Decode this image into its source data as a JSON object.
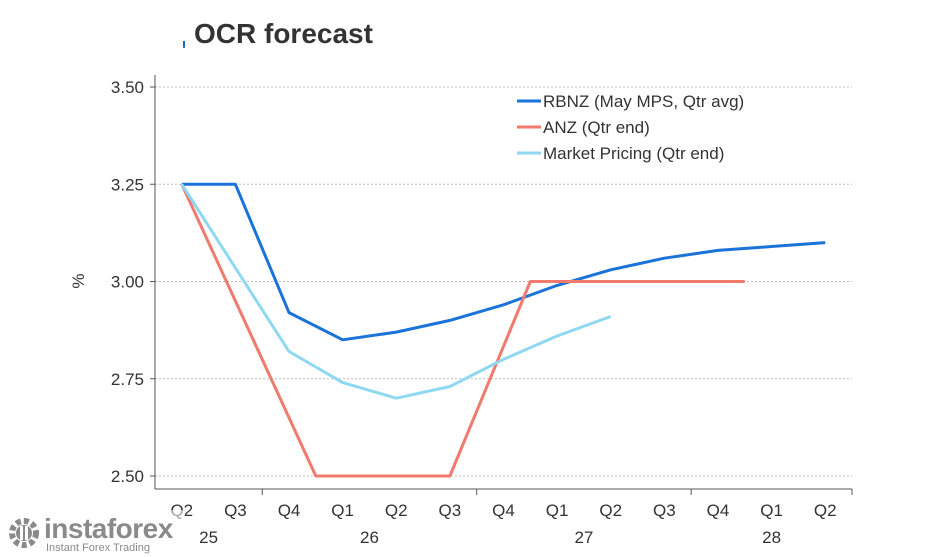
{
  "chart_data": {
    "type": "line",
    "title": "OCR forecast",
    "ylabel": "%",
    "ylim": [
      2.45,
      3.5
    ],
    "yticks": [
      "3.50",
      "3.25",
      "3.00",
      "2.75",
      "2.50"
    ],
    "ytick_values": [
      3.5,
      3.25,
      3.0,
      2.75,
      2.5
    ],
    "quarters": [
      "Q2",
      "Q3",
      "Q4",
      "Q1",
      "Q2",
      "Q3",
      "Q4",
      "Q1",
      "Q2",
      "Q3",
      "Q4",
      "Q1",
      "Q2"
    ],
    "years": [
      {
        "label": "25",
        "from": 0,
        "to": 1
      },
      {
        "label": "26",
        "from": 2,
        "to": 5
      },
      {
        "label": "27",
        "from": 6,
        "to": 9
      },
      {
        "label": "28",
        "from": 10,
        "to": 12
      }
    ],
    "grid": true,
    "legend": "top-right",
    "series": [
      {
        "name": "RBNZ (May MPS, Qtr avg)",
        "color": "#1a73d9",
        "x": [
          0,
          1,
          2,
          3,
          4,
          5,
          6,
          7,
          8,
          9,
          10,
          11,
          12
        ],
        "values": [
          3.25,
          3.25,
          2.92,
          2.85,
          2.87,
          2.9,
          2.94,
          2.99,
          3.03,
          3.06,
          3.08,
          3.09,
          3.1
        ]
      },
      {
        "name": "ANZ (Qtr end)",
        "color": "#f07a6e",
        "x": [
          0,
          2.5,
          5,
          6.5,
          10.5
        ],
        "values": [
          3.25,
          2.5,
          2.5,
          3.0,
          3.0
        ]
      },
      {
        "name": "Market Pricing (Qtr end)",
        "color": "#8fd8f2",
        "x": [
          0,
          2,
          3,
          4,
          5,
          6,
          7,
          8
        ],
        "values": [
          3.25,
          2.82,
          2.74,
          2.7,
          2.73,
          2.8,
          2.86,
          2.91
        ]
      }
    ]
  },
  "watermark": {
    "brand": "instaforex",
    "tagline": "Instant Forex Trading"
  },
  "colors": {
    "axis": "#555555",
    "grid": "#bbbbbb",
    "text": "#333333"
  }
}
